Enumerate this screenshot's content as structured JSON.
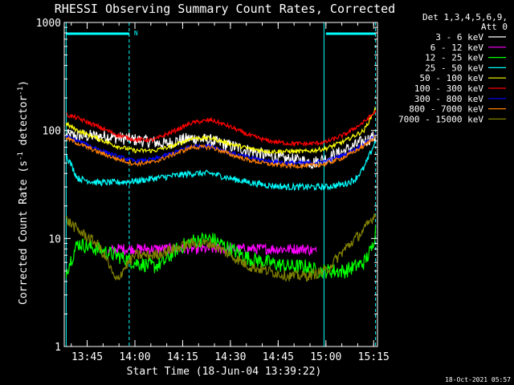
{
  "chart_data": {
    "type": "line",
    "title": "RHESSI Observing Summary Count Rates, Corrected",
    "xlabel": "Start Time (18-Jun-04 13:39:22)",
    "ylabel_main": "Corrected Count Rate (s",
    "ylabel_sup1": "-1",
    "ylabel_mid": " detector",
    "ylabel_sup2": "-1",
    "ylabel_end": ")",
    "y_scale": "log",
    "ylim": [
      1,
      1000
    ],
    "xlim_minutes": [
      13.63,
      15.27
    ],
    "x_ticks": [
      {
        "label": "13:45",
        "h": 13.75
      },
      {
        "label": "14:00",
        "h": 14.0
      },
      {
        "label": "14:15",
        "h": 14.25
      },
      {
        "label": "14:30",
        "h": 14.5
      },
      {
        "label": "14:45",
        "h": 14.75
      },
      {
        "label": "15:00",
        "h": 15.0
      },
      {
        "label": "15:15",
        "h": 15.25
      }
    ],
    "y_ticks": [
      {
        "label": "1",
        "v": 1
      },
      {
        "label": "10",
        "v": 10
      },
      {
        "label": "100",
        "v": 100
      },
      {
        "label": "1000",
        "v": 1000
      }
    ],
    "legend_header": [
      "Det 1,3,4,5,6,9,",
      "Att 0"
    ],
    "legend_position": "right",
    "series": [
      {
        "name": "3 - 6 keV",
        "color": "#ffffff",
        "x": [
          13.64,
          13.86,
          13.9,
          14.0,
          14.1,
          14.16,
          14.22,
          14.3,
          14.4,
          14.5,
          14.6,
          14.75,
          14.9,
          14.93,
          15.0,
          15.1,
          15.2,
          15.26
        ],
        "y": [
          90,
          88,
          86,
          82,
          78,
          75,
          80,
          85,
          80,
          72,
          65,
          55,
          52,
          50,
          55,
          65,
          80,
          88
        ]
      },
      {
        "name": "6 - 12 keV",
        "color": "#ff00ff",
        "x": [
          13.86,
          13.9,
          14.0,
          14.1,
          14.2,
          14.3,
          14.4,
          14.5,
          14.6,
          14.7,
          14.8,
          14.9,
          14.95
        ],
        "y": [
          7.5,
          8,
          8,
          8,
          8,
          8,
          8,
          8,
          8,
          8,
          8,
          8,
          7.5
        ]
      },
      {
        "name": "12 - 25 keV",
        "color": "#00ff00",
        "x": [
          13.64,
          13.7,
          13.8,
          13.9,
          14.0,
          14.1,
          14.15,
          14.22,
          14.3,
          14.4,
          14.5,
          14.6,
          14.7,
          14.8,
          14.9,
          14.95,
          15.0,
          15.1,
          15.2,
          15.24,
          15.26
        ],
        "y": [
          5,
          9,
          8,
          7,
          6,
          5.5,
          6,
          8,
          9.5,
          10,
          8,
          6.5,
          6,
          5.5,
          5.5,
          5,
          5,
          5,
          6,
          8,
          12
        ]
      },
      {
        "name": "25 - 50 keV",
        "color": "#00ffff",
        "x": [
          13.64,
          13.7,
          13.8,
          13.9,
          14.0,
          14.1,
          14.2,
          14.3,
          14.4,
          14.5,
          14.6,
          14.7,
          14.8,
          14.9,
          15.0,
          15.1,
          15.15,
          15.2,
          15.26
        ],
        "y": [
          60,
          36,
          33,
          33,
          34,
          36,
          38,
          40,
          40,
          36,
          33,
          31,
          30,
          30,
          30,
          32,
          35,
          45,
          80
        ]
      },
      {
        "name": "50 - 100 keV",
        "color": "#ffff00",
        "x": [
          13.64,
          13.7,
          13.8,
          13.9,
          14.0,
          14.1,
          14.2,
          14.3,
          14.4,
          14.5,
          14.6,
          14.7,
          14.8,
          14.9,
          15.0,
          15.1,
          15.2,
          15.26
        ],
        "y": [
          115,
          100,
          85,
          72,
          65,
          65,
          72,
          85,
          85,
          75,
          68,
          64,
          64,
          64,
          68,
          80,
          100,
          160
        ]
      },
      {
        "name": "100 - 300 keV",
        "color": "#ff0000",
        "x": [
          13.64,
          13.7,
          13.8,
          13.9,
          14.0,
          14.1,
          14.2,
          14.3,
          14.4,
          14.5,
          14.6,
          14.7,
          14.8,
          14.9,
          15.0,
          15.1,
          15.2,
          15.26
        ],
        "y": [
          140,
          130,
          110,
          92,
          82,
          82,
          98,
          118,
          125,
          108,
          90,
          80,
          76,
          75,
          78,
          92,
          120,
          150
        ]
      },
      {
        "name": "300 - 800 keV",
        "color": "#0000ff",
        "x": [
          13.64,
          13.7,
          13.8,
          13.9,
          14.0,
          14.1,
          14.2,
          14.3,
          14.4,
          14.5,
          14.6,
          14.7,
          14.8,
          14.9,
          15.0,
          15.1,
          15.2,
          15.26
        ],
        "y": [
          88,
          80,
          68,
          58,
          52,
          54,
          62,
          72,
          72,
          62,
          56,
          52,
          50,
          50,
          52,
          60,
          75,
          90
        ]
      },
      {
        "name": "800 - 7000 keV",
        "color": "#ff8000",
        "x": [
          13.64,
          13.7,
          13.8,
          13.9,
          14.0,
          14.1,
          14.2,
          14.3,
          14.4,
          14.5,
          14.6,
          14.7,
          14.8,
          14.9,
          15.0,
          15.1,
          15.2,
          15.26
        ],
        "y": [
          85,
          76,
          64,
          55,
          49,
          51,
          60,
          70,
          70,
          60,
          53,
          49,
          47,
          47,
          49,
          57,
          72,
          88
        ]
      },
      {
        "name": "7000 - 15000 keV",
        "color": "#808000",
        "x": [
          13.64,
          13.7,
          13.8,
          13.85,
          13.9,
          13.95,
          14.0,
          14.1,
          14.2,
          14.3,
          14.4,
          14.5,
          14.6,
          14.7,
          14.8,
          14.9,
          15.0,
          15.1,
          15.2,
          15.26
        ],
        "y": [
          15,
          12,
          9,
          6.5,
          4,
          5.5,
          7,
          7,
          8,
          9,
          9,
          7,
          5.5,
          5,
          4.5,
          4.5,
          5,
          8,
          12,
          17
        ]
      }
    ],
    "overlays": {
      "cyan_color": "#00ffff",
      "top_bars": [
        [
          13.64,
          13.97
        ],
        [
          15.0,
          15.26
        ]
      ],
      "top_label": "N",
      "solid_lines_h": [
        13.64,
        14.99
      ],
      "dashed_lines_h": [
        13.97,
        15.26
      ]
    }
  },
  "footer_timestamp": "18-Oct-2021 05:57"
}
